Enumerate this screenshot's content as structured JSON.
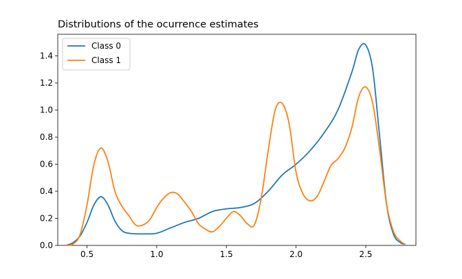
{
  "chart_data": {
    "type": "line",
    "title": "Distributions of the ocurrence estimates",
    "xlabel": "",
    "ylabel": "",
    "xlim": [
      0.29,
      2.86
    ],
    "ylim": [
      0.0,
      1.56
    ],
    "x_ticks": [
      0.5,
      1.0,
      1.5,
      2.0,
      2.5
    ],
    "x_tick_labels": [
      "0.5",
      "1.0",
      "1.5",
      "2.0",
      "2.5"
    ],
    "y_ticks": [
      0.0,
      0.2,
      0.4,
      0.6,
      0.8,
      1.0,
      1.2,
      1.4
    ],
    "y_tick_labels": [
      "0.0",
      "0.2",
      "0.4",
      "0.6",
      "0.8",
      "1.0",
      "1.2",
      "1.4"
    ],
    "grid": false,
    "legend_position": "top-left",
    "series": [
      {
        "name": "Class 0",
        "color": "#1f77b4",
        "x": [
          0.35,
          0.4,
          0.45,
          0.5,
          0.55,
          0.6,
          0.65,
          0.7,
          0.75,
          0.8,
          0.9,
          1.0,
          1.1,
          1.2,
          1.3,
          1.4,
          1.5,
          1.6,
          1.7,
          1.8,
          1.9,
          2.0,
          2.1,
          2.2,
          2.3,
          2.4,
          2.45,
          2.5,
          2.55,
          2.6,
          2.65,
          2.7,
          2.75,
          2.78
        ],
        "y": [
          0.0,
          0.02,
          0.07,
          0.17,
          0.3,
          0.36,
          0.3,
          0.18,
          0.11,
          0.09,
          0.085,
          0.09,
          0.13,
          0.17,
          0.2,
          0.25,
          0.27,
          0.28,
          0.31,
          0.4,
          0.52,
          0.6,
          0.7,
          0.83,
          1.0,
          1.28,
          1.45,
          1.48,
          1.3,
          0.8,
          0.3,
          0.08,
          0.02,
          0.01
        ]
      },
      {
        "name": "Class 1",
        "color": "#ff7f0e",
        "x": [
          0.35,
          0.4,
          0.45,
          0.5,
          0.55,
          0.6,
          0.65,
          0.7,
          0.75,
          0.8,
          0.85,
          0.9,
          0.95,
          1.0,
          1.05,
          1.1,
          1.15,
          1.2,
          1.25,
          1.3,
          1.35,
          1.4,
          1.45,
          1.5,
          1.55,
          1.6,
          1.65,
          1.7,
          1.75,
          1.8,
          1.85,
          1.9,
          1.95,
          2.0,
          2.05,
          2.1,
          2.15,
          2.2,
          2.25,
          2.3,
          2.35,
          2.4,
          2.45,
          2.5,
          2.55,
          2.6,
          2.65,
          2.7,
          2.75,
          2.78
        ],
        "y": [
          0.0,
          0.01,
          0.08,
          0.3,
          0.6,
          0.72,
          0.62,
          0.4,
          0.29,
          0.22,
          0.15,
          0.15,
          0.19,
          0.28,
          0.35,
          0.39,
          0.38,
          0.32,
          0.25,
          0.16,
          0.12,
          0.1,
          0.14,
          0.2,
          0.25,
          0.22,
          0.16,
          0.15,
          0.35,
          0.7,
          1.0,
          1.05,
          0.9,
          0.54,
          0.38,
          0.33,
          0.36,
          0.47,
          0.59,
          0.64,
          0.72,
          0.87,
          1.1,
          1.17,
          1.05,
          0.7,
          0.3,
          0.1,
          0.03,
          0.01
        ]
      }
    ]
  }
}
